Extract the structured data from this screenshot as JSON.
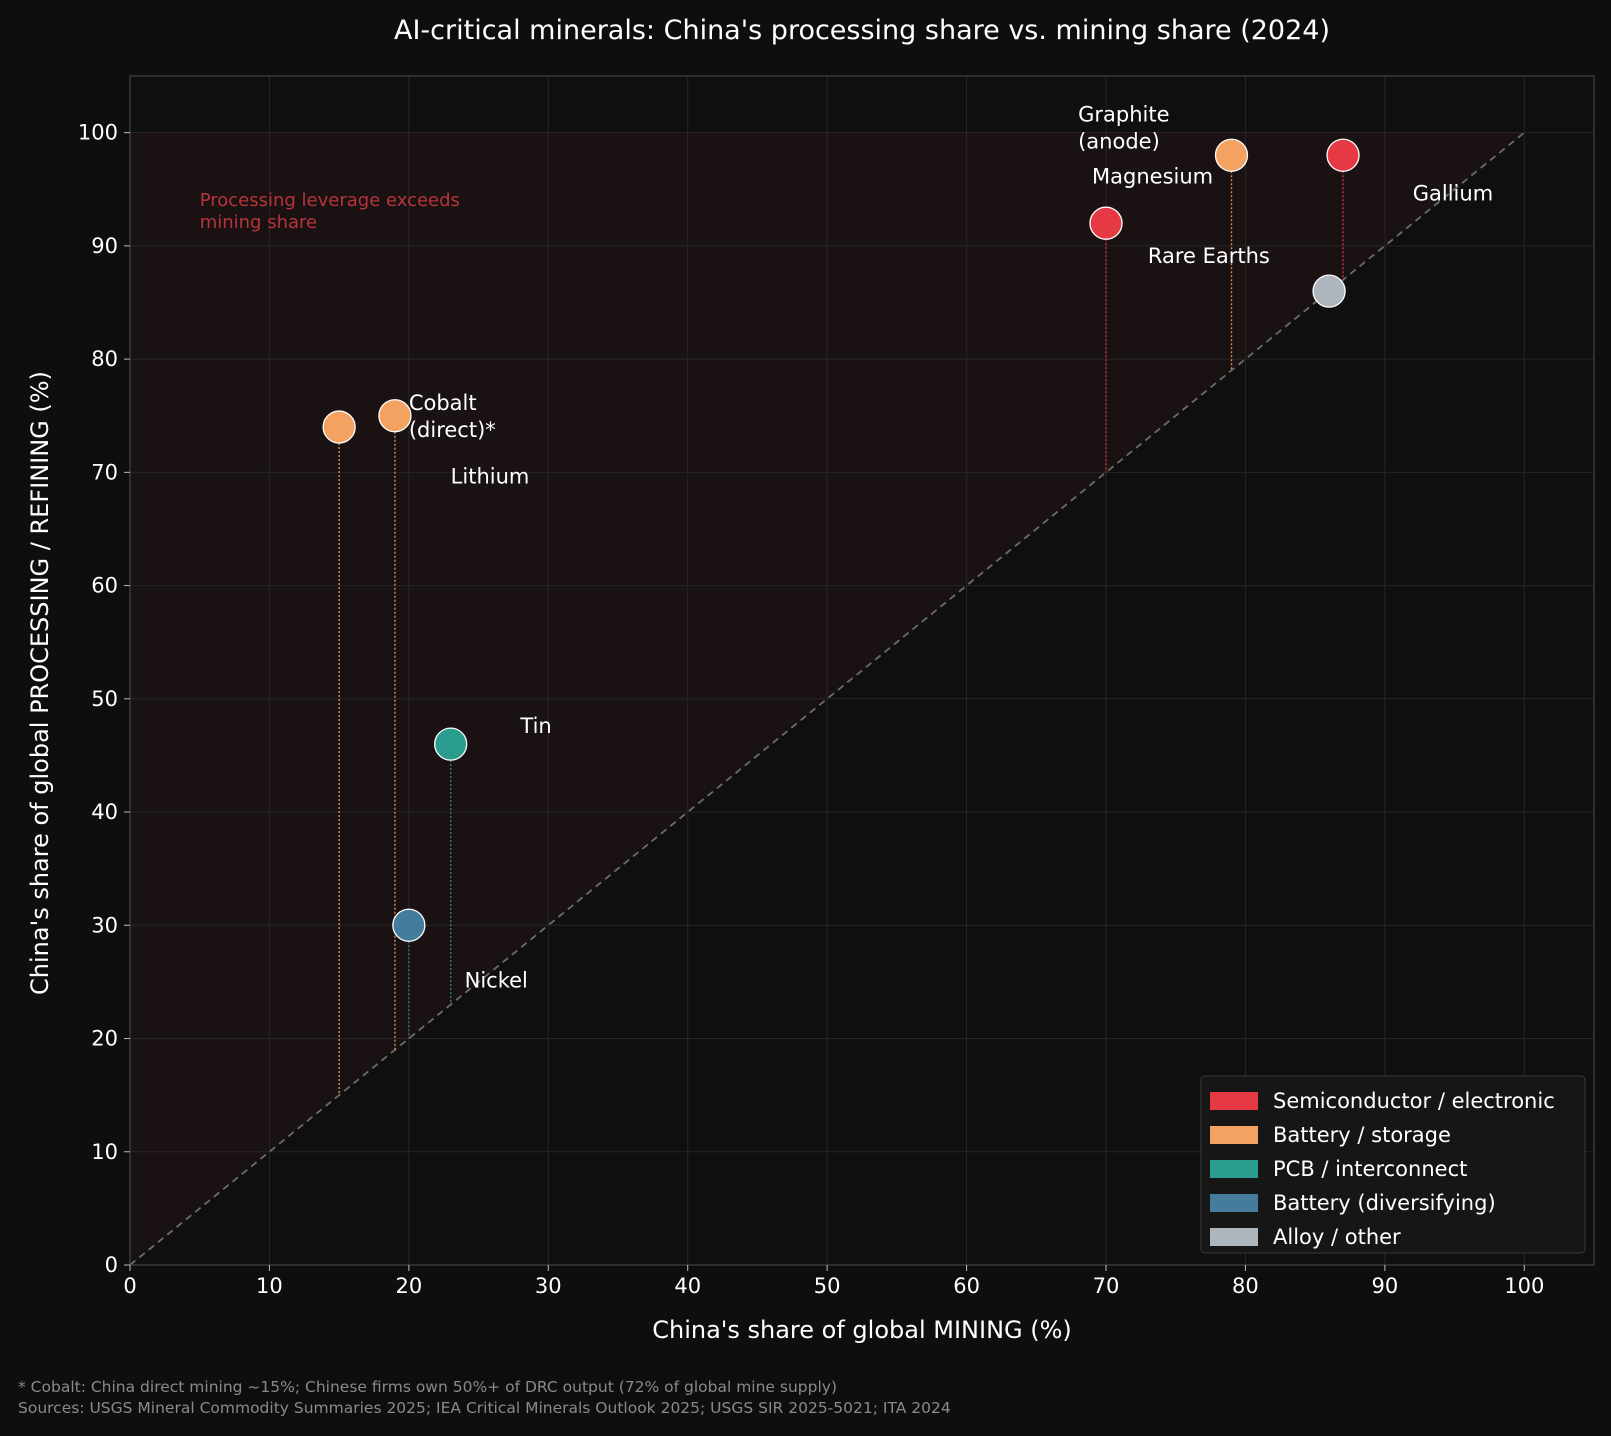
{
  "chart_data": {
    "type": "scatter",
    "title": "AI-critical minerals: China's processing share vs. mining share (2024)",
    "xlabel": "China's share of global MINING  (%)",
    "ylabel": "China's share of global PROCESSING / REFINING  (%)",
    "xlim": [
      0,
      105
    ],
    "ylim": [
      0,
      105
    ],
    "xticks": [
      0,
      10,
      20,
      30,
      40,
      50,
      60,
      70,
      80,
      90,
      100
    ],
    "yticks": [
      0,
      10,
      20,
      30,
      40,
      50,
      60,
      70,
      80,
      90,
      100
    ],
    "grid": true,
    "legend_position": "lower-right",
    "annotation": "Processing leverage exceeds\nmining share",
    "categories": [
      {
        "name": "Semiconductor / electronic",
        "color": "#e63946"
      },
      {
        "name": "Battery / storage",
        "color": "#f4a261"
      },
      {
        "name": "PCB / interconnect",
        "color": "#2a9d8f"
      },
      {
        "name": "Battery (diversifying)",
        "color": "#457b9d"
      },
      {
        "name": "Alloy / other",
        "color": "#adb5bd"
      }
    ],
    "points": [
      {
        "label": "Graphite\n(anode)",
        "x": 79,
        "y": 98,
        "category": "Battery / storage"
      },
      {
        "label": "Rare Earths",
        "x": 70,
        "y": 92,
        "category": "Semiconductor / electronic"
      },
      {
        "label": "Gallium",
        "x": 87,
        "y": 98,
        "category": "Semiconductor / electronic"
      },
      {
        "label": "Magnesium",
        "x": 86,
        "y": 86,
        "category": "Alloy / other"
      },
      {
        "label": "Cobalt\n(direct)*",
        "x": 15,
        "y": 74,
        "category": "Battery / storage"
      },
      {
        "label": "Lithium",
        "x": 19,
        "y": 75,
        "category": "Battery / storage"
      },
      {
        "label": "Tin",
        "x": 23,
        "y": 46,
        "category": "PCB / interconnect"
      },
      {
        "label": "Nickel",
        "x": 20,
        "y": 30,
        "category": "Battery (diversifying)"
      }
    ]
  },
  "footnotes": {
    "line1": "* Cobalt: China direct mining ~15%; Chinese firms own 50%+ of DRC output (72% of global mine supply)",
    "line2": "Sources: USGS Mineral Commodity Summaries 2025; IEA Critical Minerals Outlook 2025; USGS SIR 2025-5021; ITA 2024"
  }
}
